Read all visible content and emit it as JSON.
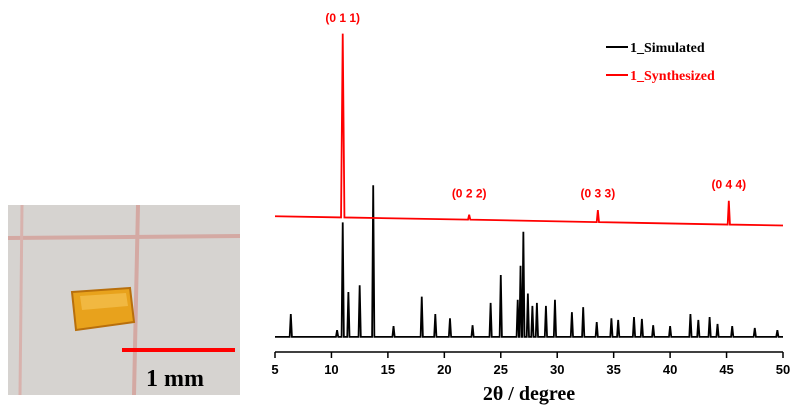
{
  "photo": {
    "scale_label": "1 mm"
  },
  "chart_data": {
    "type": "line",
    "xlabel": "2θ / degree",
    "xlim": [
      5,
      50
    ],
    "xticks": [
      5,
      10,
      15,
      20,
      25,
      30,
      35,
      40,
      45,
      50
    ],
    "ylim": [
      0,
      106
    ],
    "legend": "upper right",
    "annotations": [
      {
        "text": "(0 1 1)",
        "x": 11.0,
        "y": 102.8
      },
      {
        "text": "(0 2 2)",
        "x": 22.2,
        "y": 46
      },
      {
        "text": "(0 3 3)",
        "x": 33.6,
        "y": 46
      },
      {
        "text": "(0 4 4)",
        "x": 45.2,
        "y": 49
      }
    ],
    "series": [
      {
        "name": "1_Simulated",
        "color": "#000000",
        "x": [
          5,
          6.3,
          6.4,
          6.5,
          10.4,
          10.5,
          10.6,
          10.9,
          11.0,
          11.1,
          11.4,
          11.5,
          11.6,
          12.4,
          12.5,
          12.6,
          13.6,
          13.7,
          13.8,
          15.4,
          15.5,
          15.6,
          17.9,
          18.0,
          18.1,
          19.1,
          19.2,
          19.3,
          20.4,
          20.5,
          20.6,
          22.4,
          22.5,
          22.6,
          24.0,
          24.1,
          24.2,
          24.9,
          25.0,
          25.1,
          26.4,
          26.5,
          26.6,
          26.65,
          26.75,
          26.85,
          26.9,
          27.0,
          27.1,
          27.3,
          27.4,
          27.5,
          27.7,
          27.8,
          27.9,
          28.1,
          28.2,
          28.3,
          28.9,
          29.0,
          29.1,
          29.7,
          29.8,
          29.9,
          31.2,
          31.3,
          31.4,
          32.2,
          32.3,
          32.4,
          33.4,
          33.5,
          33.6,
          34.7,
          34.8,
          34.9,
          35.3,
          35.4,
          35.5,
          36.7,
          36.8,
          36.9,
          37.4,
          37.5,
          37.6,
          38.4,
          38.5,
          38.6,
          39.9,
          40.0,
          40.1,
          41.7,
          41.8,
          41.9,
          42.4,
          42.5,
          42.6,
          43.4,
          43.5,
          43.6,
          44.1,
          44.2,
          44.3,
          45.4,
          45.5,
          45.6,
          47.4,
          47.5,
          47.6,
          49.4,
          49.5,
          49.6,
          50
        ],
        "values": [
          1,
          1,
          8.4,
          1,
          1,
          3.2,
          1,
          1,
          38,
          1,
          1,
          15.5,
          1,
          1,
          17.7,
          1,
          1,
          50,
          1,
          1,
          4.5,
          1,
          1,
          14,
          1,
          1,
          8.4,
          1,
          1,
          7,
          1,
          1,
          4.8,
          1,
          1,
          12,
          1,
          1,
          21,
          1,
          1,
          13,
          1,
          1,
          24,
          1,
          1,
          35,
          1,
          1,
          15,
          1,
          1,
          11,
          1,
          1,
          12,
          1,
          1,
          11,
          1,
          1,
          13,
          1,
          1,
          9,
          1,
          1,
          10.6,
          1,
          1,
          5.8,
          1,
          1,
          7,
          1,
          1,
          6.5,
          1,
          1,
          7.4,
          1,
          1,
          6.8,
          1,
          1,
          4.8,
          1,
          1,
          4.5,
          1,
          1,
          8.4,
          1,
          1,
          6.5,
          1,
          1,
          7.4,
          1,
          1,
          5.2,
          1,
          1,
          4.5,
          1,
          1,
          3.9,
          1,
          1,
          3.2,
          1,
          1
        ]
      },
      {
        "name": "1_Synthesized",
        "color": "#ff0000",
        "x": [
          5,
          10.85,
          11.0,
          11.15,
          22.1,
          22.2,
          22.3,
          33.5,
          33.6,
          33.7,
          45.1,
          45.2,
          45.3,
          50
        ],
        "values": [
          40,
          39.6,
          99,
          39.6,
          38.9,
          40.5,
          38.9,
          38.1,
          42,
          38.1,
          37.3,
          45,
          37.3,
          37
        ]
      }
    ]
  }
}
